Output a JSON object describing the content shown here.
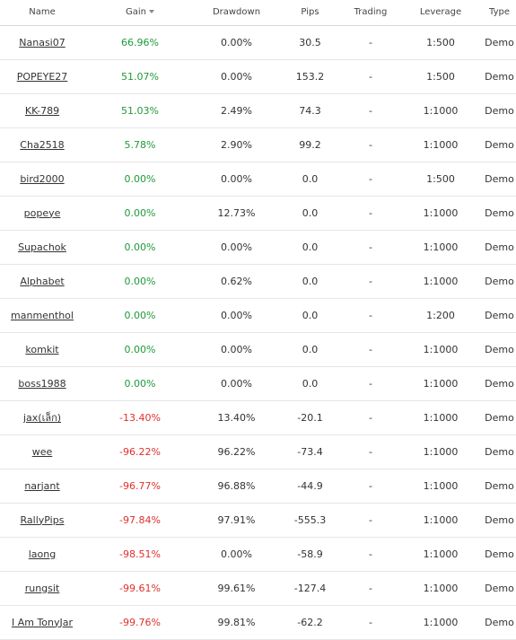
{
  "columns": {
    "name": "Name",
    "gain": "Gain",
    "drawdown": "Drawdown",
    "pips": "Pips",
    "trading": "Trading",
    "leverage": "Leverage",
    "type": "Type"
  },
  "sort": {
    "column": "gain",
    "direction": "desc",
    "icon": "sort-desc-icon"
  },
  "colors": {
    "positive": "#1e9a38",
    "negative": "#e0302b",
    "neutral": "#333333"
  },
  "rows": [
    {
      "name": "Nanasi07",
      "gain": "66.96%",
      "drawdown": "0.00%",
      "pips": "30.5",
      "trading": "-",
      "leverage": "1:500",
      "type": "Demo"
    },
    {
      "name": "POPEYE27",
      "gain": "51.07%",
      "drawdown": "0.00%",
      "pips": "153.2",
      "trading": "-",
      "leverage": "1:500",
      "type": "Demo"
    },
    {
      "name": "KK-789",
      "gain": "51.03%",
      "drawdown": "2.49%",
      "pips": "74.3",
      "trading": "-",
      "leverage": "1:1000",
      "type": "Demo"
    },
    {
      "name": "Cha2518",
      "gain": "5.78%",
      "drawdown": "2.90%",
      "pips": "99.2",
      "trading": "-",
      "leverage": "1:1000",
      "type": "Demo"
    },
    {
      "name": "bird2000",
      "gain": "0.00%",
      "drawdown": "0.00%",
      "pips": "0.0",
      "trading": "-",
      "leverage": "1:500",
      "type": "Demo"
    },
    {
      "name": "popeye",
      "gain": "0.00%",
      "drawdown": "12.73%",
      "pips": "0.0",
      "trading": "-",
      "leverage": "1:1000",
      "type": "Demo"
    },
    {
      "name": "Supachok",
      "gain": "0.00%",
      "drawdown": "0.00%",
      "pips": "0.0",
      "trading": "-",
      "leverage": "1:1000",
      "type": "Demo"
    },
    {
      "name": "Alphabet",
      "gain": "0.00%",
      "drawdown": "0.62%",
      "pips": "0.0",
      "trading": "-",
      "leverage": "1:1000",
      "type": "Demo"
    },
    {
      "name": "manmenthol",
      "gain": "0.00%",
      "drawdown": "0.00%",
      "pips": "0.0",
      "trading": "-",
      "leverage": "1:200",
      "type": "Demo"
    },
    {
      "name": "komkit",
      "gain": "0.00%",
      "drawdown": "0.00%",
      "pips": "0.0",
      "trading": "-",
      "leverage": "1:1000",
      "type": "Demo"
    },
    {
      "name": "boss1988",
      "gain": "0.00%",
      "drawdown": "0.00%",
      "pips": "0.0",
      "trading": "-",
      "leverage": "1:1000",
      "type": "Demo"
    },
    {
      "name": "jax(เล็ก)",
      "gain": "-13.40%",
      "drawdown": "13.40%",
      "pips": "-20.1",
      "trading": "-",
      "leverage": "1:1000",
      "type": "Demo"
    },
    {
      "name": "wee",
      "gain": "-96.22%",
      "drawdown": "96.22%",
      "pips": "-73.4",
      "trading": "-",
      "leverage": "1:1000",
      "type": "Demo"
    },
    {
      "name": "narjant",
      "gain": "-96.77%",
      "drawdown": "96.88%",
      "pips": "-44.9",
      "trading": "-",
      "leverage": "1:1000",
      "type": "Demo"
    },
    {
      "name": "RallyPips",
      "gain": "-97.84%",
      "drawdown": "97.91%",
      "pips": "-555.3",
      "trading": "-",
      "leverage": "1:1000",
      "type": "Demo"
    },
    {
      "name": "laong",
      "gain": "-98.51%",
      "drawdown": "0.00%",
      "pips": "-58.9",
      "trading": "-",
      "leverage": "1:1000",
      "type": "Demo"
    },
    {
      "name": "rungsit",
      "gain": "-99.61%",
      "drawdown": "99.61%",
      "pips": "-127.4",
      "trading": "-",
      "leverage": "1:1000",
      "type": "Demo"
    },
    {
      "name": "I Am TonyJar",
      "gain": "-99.76%",
      "drawdown": "99.81%",
      "pips": "-62.2",
      "trading": "-",
      "leverage": "1:1000",
      "type": "Demo"
    }
  ]
}
